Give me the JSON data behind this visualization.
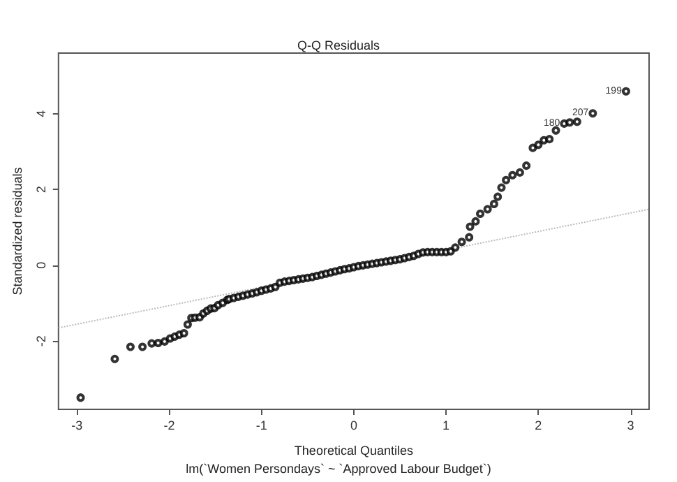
{
  "chart_data": {
    "type": "scatter",
    "title": "Q-Q Residuals",
    "subtitle": "lm(`Women Persondays` ~ `Approved Labour Budget`)",
    "xlabel": "Theoretical Quantiles",
    "ylabel": "Standardized residuals",
    "xlim": [
      -3.2,
      3.2
    ],
    "xticks": [
      -3,
      -2,
      -1,
      0,
      1,
      2,
      3
    ],
    "ylim": [
      -3.8,
      5.6
    ],
    "yticks": [
      -2,
      0,
      2,
      4
    ],
    "grid": false,
    "marker": "circle",
    "series": [
      {
        "color": "#000000",
        "x": [
          -2.96,
          -2.59,
          -2.42,
          -2.29,
          -2.19,
          -2.12,
          -2.05,
          -1.99,
          -1.94,
          -1.89,
          -1.84,
          -1.8,
          -1.76,
          -1.72,
          -1.67,
          -1.63,
          -1.59,
          -1.55,
          -1.51,
          -1.47,
          -1.42,
          -1.37,
          -1.35,
          -1.3,
          -1.25,
          -1.2,
          -1.15,
          -1.1,
          -1.05,
          -1,
          -0.95,
          -0.9,
          -0.85,
          -0.8,
          -0.75,
          -0.7,
          -0.65,
          -0.6,
          -0.55,
          -0.5,
          -0.45,
          -0.4,
          -0.35,
          -0.3,
          -0.25,
          -0.2,
          -0.15,
          -0.1,
          -0.05,
          0,
          0.05,
          0.1,
          0.15,
          0.2,
          0.25,
          0.3,
          0.35,
          0.4,
          0.45,
          0.5,
          0.55,
          0.6,
          0.65,
          0.7,
          0.75,
          0.8,
          0.85,
          0.9,
          0.95,
          1,
          1.05,
          1.1,
          1.17,
          1.25,
          1.26,
          1.32,
          1.37,
          1.45,
          1.52,
          1.56,
          1.6,
          1.65,
          1.72,
          1.8,
          1.87,
          1.94,
          2,
          2.06,
          2.12,
          2.19,
          2.28,
          2.34,
          2.42,
          2.59,
          2.95
        ],
        "values": [
          -3.49,
          -2.47,
          -2.15,
          -2.15,
          -2.06,
          -2.05,
          -2.01,
          -1.93,
          -1.88,
          -1.83,
          -1.79,
          -1.56,
          -1.39,
          -1.38,
          -1.37,
          -1.27,
          -1.2,
          -1.14,
          -1.13,
          -1.05,
          -0.99,
          -0.91,
          -0.89,
          -0.86,
          -0.83,
          -0.8,
          -0.77,
          -0.74,
          -0.71,
          -0.67,
          -0.64,
          -0.61,
          -0.57,
          -0.46,
          -0.43,
          -0.41,
          -0.39,
          -0.37,
          -0.35,
          -0.33,
          -0.31,
          -0.28,
          -0.25,
          -0.22,
          -0.19,
          -0.16,
          -0.13,
          -0.1,
          -0.08,
          -0.05,
          -0.02,
          0,
          0.02,
          0.04,
          0.06,
          0.08,
          0.1,
          0.12,
          0.14,
          0.16,
          0.19,
          0.22,
          0.25,
          0.3,
          0.34,
          0.35,
          0.35,
          0.35,
          0.35,
          0.35,
          0.37,
          0.47,
          0.62,
          0.74,
          1.02,
          1.16,
          1.36,
          1.48,
          1.62,
          1.81,
          2.05,
          2.25,
          2.38,
          2.45,
          2.63,
          3.1,
          3.18,
          3.3,
          3.33,
          3.56,
          3.74,
          3.77,
          3.79,
          4.01,
          4.59
        ]
      },
      {
        "type": "line",
        "color": "#bbbbbb",
        "line_style": "dotted",
        "marker": "none",
        "x": [
          -3.2,
          3.2
        ],
        "values": [
          -1.65,
          1.48
        ]
      }
    ],
    "annotations": [
      {
        "text": "199",
        "x": 2.95,
        "y": 4.59
      },
      {
        "text": "207",
        "x": 2.59,
        "y": 4.01
      },
      {
        "text": "180",
        "x": 2.28,
        "y": 3.74
      }
    ]
  }
}
